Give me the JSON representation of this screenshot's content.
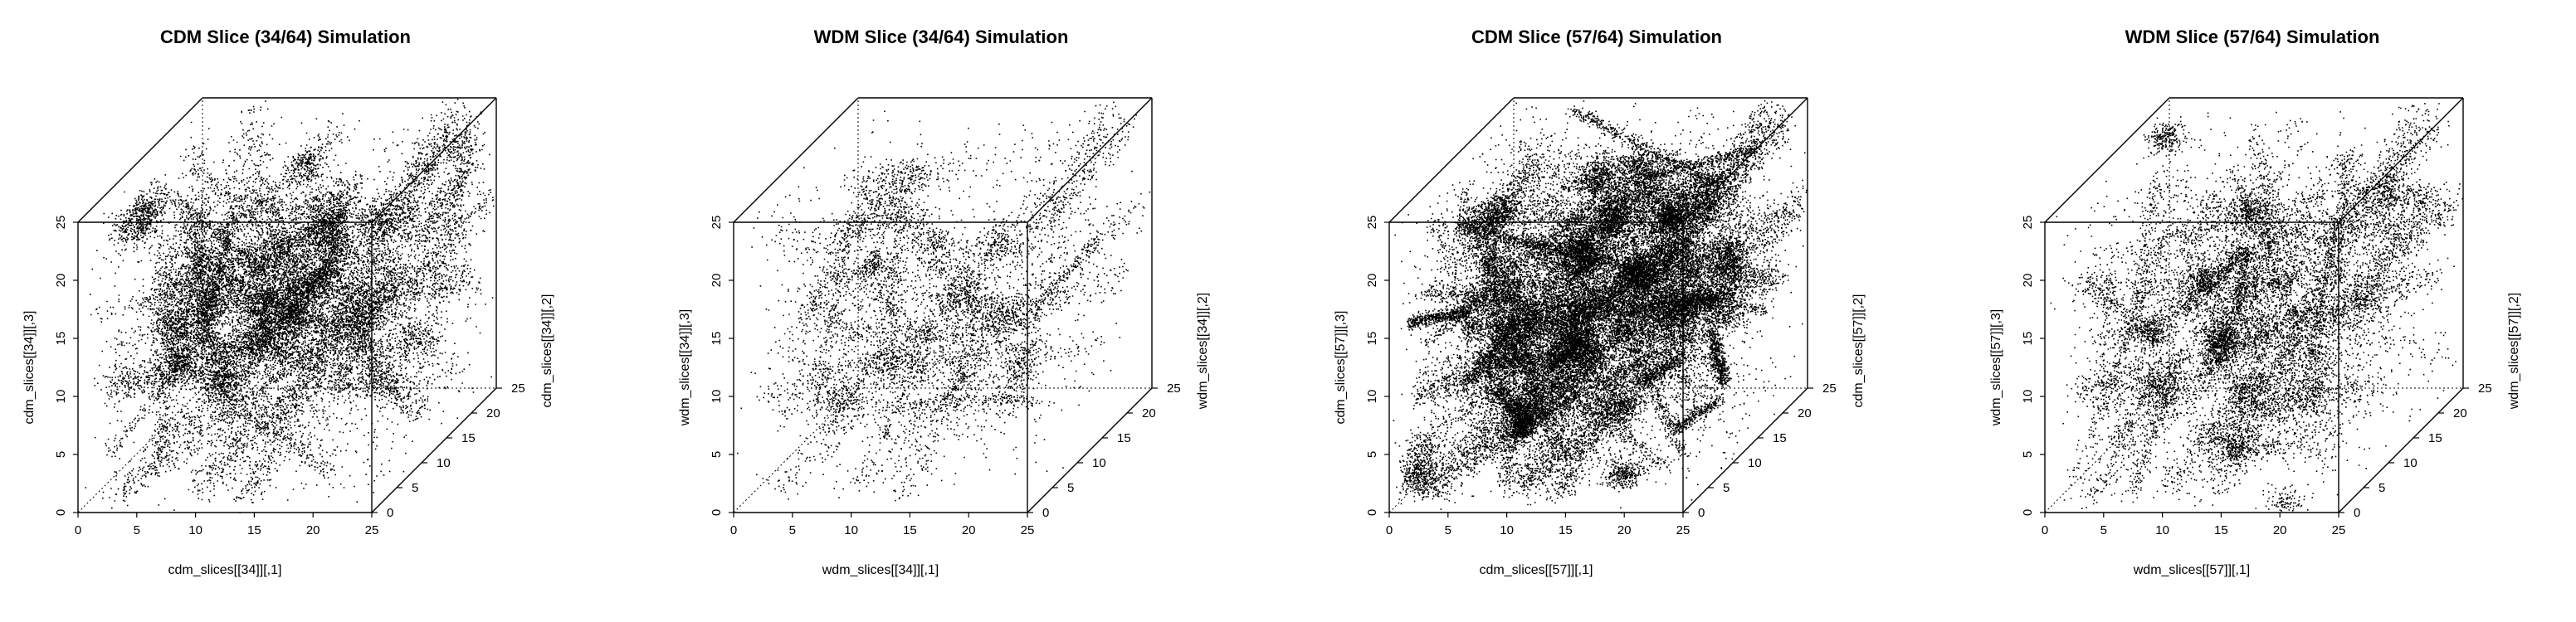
{
  "figure": {
    "panels": [
      {
        "title": "CDM Slice (34/64) Simulation",
        "xlabel": "cdm_slices[[34]][,1]",
        "ylabel": "cdm_slices[[34]][,2]",
        "zlabel": "cdm_slices[[34]][,3]",
        "density": 1.0
      },
      {
        "title": "WDM Slice (34/64) Simulation",
        "xlabel": "wdm_slices[[34]][,1]",
        "ylabel": "wdm_slices[[34]][,2]",
        "zlabel": "wdm_slices[[34]][,3]",
        "density": 0.45
      },
      {
        "title": "CDM Slice (57/64) Simulation",
        "xlabel": "cdm_slices[[57]][,1]",
        "ylabel": "cdm_slices[[57]][,2]",
        "zlabel": "cdm_slices[[57]][,3]",
        "density": 1.6
      },
      {
        "title": "WDM Slice (57/64) Simulation",
        "xlabel": "wdm_slices[[57]][,1]",
        "ylabel": "wdm_slices[[57]][,2]",
        "zlabel": "wdm_slices[[57]][,3]",
        "density": 0.8
      }
    ]
  },
  "chart_data": [
    {
      "type": "scatter",
      "subtype": "3d-scatter",
      "title": "CDM Slice (34/64) Simulation",
      "xlabel": "cdm_slices[[34]][,1]",
      "ylabel": "cdm_slices[[34]][,2]",
      "zlabel": "cdm_slices[[34]][,3]",
      "xlim": [
        0,
        25
      ],
      "ylim": [
        0,
        25
      ],
      "zlim": [
        0,
        25
      ],
      "x_ticks": [
        0,
        5,
        10,
        15,
        20,
        25
      ],
      "y_ticks": [
        0,
        5,
        10,
        15,
        20,
        25
      ],
      "z_ticks": [
        0,
        5,
        10,
        15,
        20,
        25
      ],
      "point_color": "#000000"
    },
    {
      "type": "scatter",
      "subtype": "3d-scatter",
      "title": "WDM Slice (34/64) Simulation",
      "xlabel": "wdm_slices[[34]][,1]",
      "ylabel": "wdm_slices[[34]][,2]",
      "zlabel": "wdm_slices[[34]][,3]",
      "xlim": [
        0,
        25
      ],
      "ylim": [
        0,
        25
      ],
      "zlim": [
        0,
        25
      ],
      "x_ticks": [
        0,
        5,
        10,
        15,
        20,
        25
      ],
      "y_ticks": [
        0,
        5,
        10,
        15,
        20,
        25
      ],
      "z_ticks": [
        0,
        5,
        10,
        15,
        20,
        25
      ],
      "point_color": "#000000"
    },
    {
      "type": "scatter",
      "subtype": "3d-scatter",
      "title": "CDM Slice (57/64) Simulation",
      "xlabel": "cdm_slices[[57]][,1]",
      "ylabel": "cdm_slices[[57]][,2]",
      "zlabel": "cdm_slices[[57]][,3]",
      "xlim": [
        0,
        25
      ],
      "ylim": [
        0,
        25
      ],
      "zlim": [
        0,
        25
      ],
      "x_ticks": [
        0,
        5,
        10,
        15,
        20,
        25
      ],
      "y_ticks": [
        0,
        5,
        10,
        15,
        20,
        25
      ],
      "z_ticks": [
        0,
        5,
        10,
        15,
        20,
        25
      ],
      "point_color": "#000000"
    },
    {
      "type": "scatter",
      "subtype": "3d-scatter",
      "title": "WDM Slice (57/64) Simulation",
      "xlabel": "wdm_slices[[57]][,1]",
      "ylabel": "wdm_slices[[57]][,2]",
      "zlabel": "wdm_slices[[57]][,3]",
      "xlim": [
        0,
        25
      ],
      "ylim": [
        0,
        25
      ],
      "zlim": [
        0,
        25
      ],
      "x_ticks": [
        0,
        5,
        10,
        15,
        20,
        25
      ],
      "y_ticks": [
        0,
        5,
        10,
        15,
        20,
        25
      ],
      "z_ticks": [
        0,
        5,
        10,
        15,
        20,
        25
      ],
      "point_color": "#000000"
    }
  ]
}
